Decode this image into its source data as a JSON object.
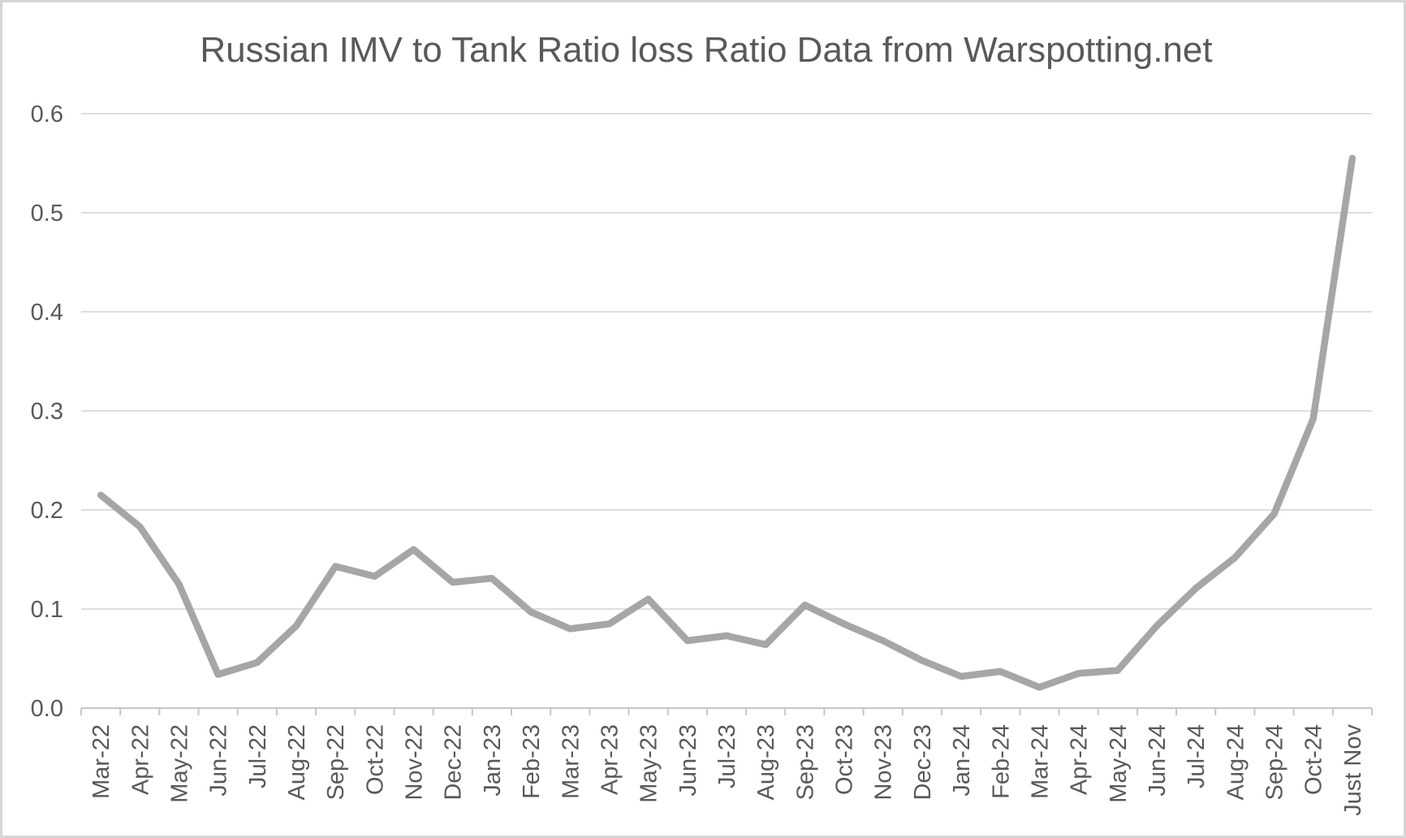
{
  "chart_data": {
    "type": "line",
    "title": "Russian IMV to Tank Ratio loss Ratio Data from Warspotting.net",
    "categories": [
      "Mar-22",
      "Apr-22",
      "May-22",
      "Jun-22",
      "Jul-22",
      "Aug-22",
      "Sep-22",
      "Oct-22",
      "Nov-22",
      "Dec-22",
      "Jan-23",
      "Feb-23",
      "Mar-23",
      "Apr-23",
      "May-23",
      "Jun-23",
      "Jul-23",
      "Aug-23",
      "Sep-23",
      "Oct-23",
      "Nov-23",
      "Dec-23",
      "Jan-24",
      "Feb-24",
      "Mar-24",
      "Apr-24",
      "May-24",
      "Jun-24",
      "Jul-24",
      "Aug-24",
      "Sep-24",
      "Oct-24",
      "Just Nov"
    ],
    "values": [
      0.215,
      0.183,
      0.125,
      0.034,
      0.046,
      0.083,
      0.143,
      0.133,
      0.16,
      0.127,
      0.131,
      0.097,
      0.08,
      0.085,
      0.11,
      0.068,
      0.073,
      0.064,
      0.104,
      0.085,
      0.068,
      0.048,
      0.032,
      0.037,
      0.021,
      0.035,
      0.038,
      0.083,
      0.121,
      0.152,
      0.196,
      0.292,
      0.555
    ],
    "xlabel": "",
    "ylabel": "",
    "ylim": [
      0,
      0.6
    ],
    "y_tick_step": 0.1,
    "y_tick_labels": [
      "0.0",
      "0.1",
      "0.2",
      "0.3",
      "0.4",
      "0.5",
      "0.6"
    ],
    "grid": "horizontal",
    "legend": "none",
    "x_label_rotation_degrees": -90
  },
  "colors": {
    "line": "#a6a6a6",
    "gridline": "#d9d9d9",
    "axis": "#c6c6c6",
    "text": "#595959",
    "background": "#ffffff",
    "border": "#d6d6d6"
  }
}
